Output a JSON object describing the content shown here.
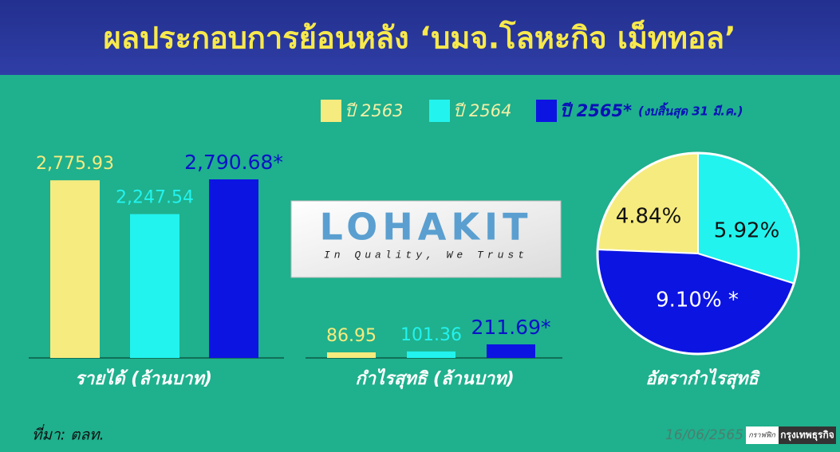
{
  "header": {
    "title": "ผลประกอบการย้อนหลัง ‘บมจ.โลหะกิจ เม็ททอล’"
  },
  "legend": {
    "items": [
      {
        "name": "ปี 2563",
        "color": "#f6eb7e"
      },
      {
        "name": "ปี 2564",
        "color": "#22f3ee"
      },
      {
        "name": "ปี 2565*",
        "color": "#0c14e2"
      }
    ],
    "note": "(งบสิ้นสุด 31 มี.ค.)"
  },
  "logo": {
    "name": "LOHAKIT",
    "slogan": "In Quality, We Trust"
  },
  "chart_data": [
    {
      "type": "bar",
      "xlabel": "รายได้ (ล้านบาท)",
      "values": [
        2775.93,
        2247.54,
        2790.68
      ],
      "value_labels": [
        "2,775.93",
        "2,247.54",
        "2,790.68*"
      ]
    },
    {
      "type": "bar",
      "xlabel": "กำไรสุทธิ (ล้านบาท)",
      "values": [
        86.95,
        101.36,
        211.69
      ],
      "value_labels": [
        "86.95",
        "101.36",
        "211.69*"
      ]
    },
    {
      "type": "pie",
      "xlabel": "อัตรากำไรสุทธิ",
      "values": [
        4.84,
        5.92,
        9.1
      ],
      "value_labels": [
        "4.84%",
        "5.92%",
        "9.10% *"
      ]
    }
  ],
  "footer": {
    "source": "ที่มา: ตลท.",
    "date": "16/06/2565",
    "credit_label": "กราฟฟิก",
    "credit": "กรุงเทพธุรกิจ"
  }
}
